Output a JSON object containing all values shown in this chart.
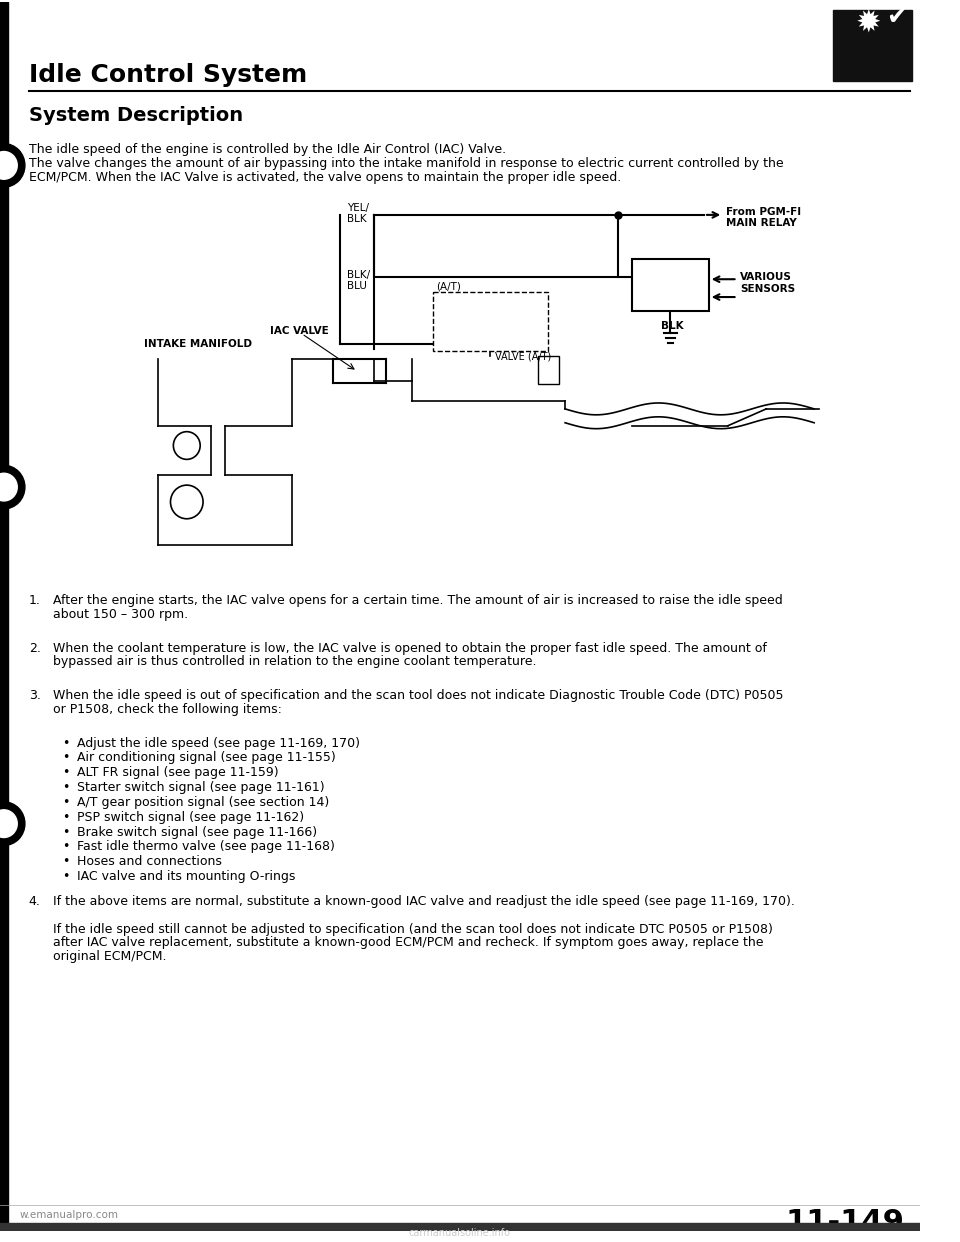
{
  "bg_color": "#ffffff",
  "title": "Idle Control System",
  "title_fontsize": 18,
  "section_title": "System Description",
  "section_title_fontsize": 15,
  "intro_text_1": "The idle speed of the engine is controlled by the Idle Air Control (IAC) Valve.",
  "intro_text_2a": "The valve changes the amount of air bypassing into the intake manifold in response to electric current controlled by the",
  "intro_text_2b": "ECM/PCM. When the IAC Valve is activated, the valve opens to maintain the proper idle speed.",
  "numbered_items": [
    {
      "num": "1.",
      "line1": "After the engine starts, the IAC valve opens for a certain time. The amount of air is increased to raise the idle speed",
      "line2": "about 150 – 300 rpm."
    },
    {
      "num": "2.",
      "line1": "When the coolant temperature is low, the IAC valve is opened to obtain the proper fast idle speed. The amount of",
      "line2": "bypassed air is thus controlled in relation to the engine coolant temperature."
    },
    {
      "num": "3.",
      "line1": "When the idle speed is out of specification and the scan tool does not indicate Diagnostic Trouble Code (DTC) P0505",
      "line2": "or P1508, check the following items:"
    }
  ],
  "bullet_items": [
    "Adjust the idle speed (see page 11-169, 170)",
    "Air conditioning signal (see page 11-155)",
    "ALT FR signal (see page 11-159)",
    "Starter switch signal (see page 11-161)",
    "A/T gear position signal (see section 14)",
    "PSP switch signal (see page 11-162)",
    "Brake switch signal (see page 11-166)",
    "Fast idle thermo valve (see page 11-168)",
    "Hoses and connections",
    "IAC valve and its mounting O-rings"
  ],
  "item4_line1": "If the above items are normal, substitute a known-good IAC valve and readjust the idle speed (see page 11-169, 170).",
  "item4_detail1": "If the idle speed still cannot be adjusted to specification (and the scan tool does not indicate DTC P0505 or P1508)",
  "item4_detail2": "after IAC valve replacement, substitute a known-good ECM/PCM and recheck. If symptom goes away, replace the",
  "item4_detail3": "original ECM/PCM.",
  "page_num": "11-149",
  "footer_left": "w.emanualpro.com",
  "footer_right": "carmanualsoline.info",
  "left_bar_color": "#000000",
  "text_color": "#000000"
}
